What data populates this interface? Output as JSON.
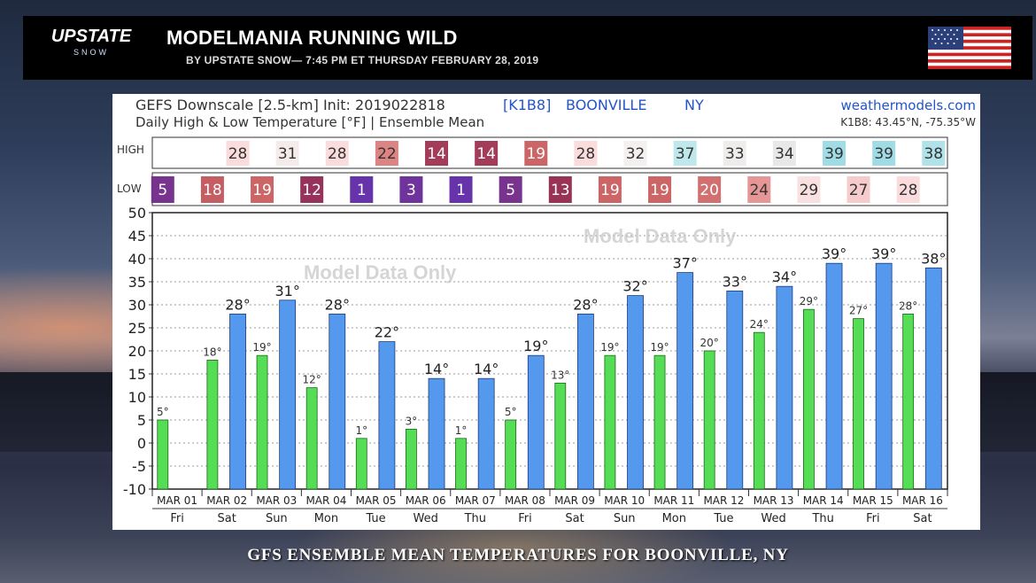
{
  "header": {
    "logo_main": "UPSTATE",
    "logo_sub": "SNOW",
    "title": "MODELMANIA RUNNING WILD",
    "byline": "BY UPSTATE SNOW— 7:45 PM ET THURSDAY FEBRUARY 28, 2019"
  },
  "caption": "GFS ENSEMBLE MEAN TEMPERATURES FOR BOONVILLE, NY",
  "colors": {
    "high_bar": "#5599ee",
    "low_bar": "#55dd55"
  },
  "chart_data": {
    "type": "bar",
    "title_line1": "GEFS Downscale [2.5-km] Init: 2019022818",
    "station_id": "[K1B8]",
    "station_name": "BOONVILLE",
    "station_state": "NY",
    "source": "weathermodels.com",
    "title_line2": "Daily High & Low Temperature [°F] | Ensemble Mean",
    "location": "K1B8: 43.45°N, -75.35°W",
    "watermark": "Model Data Only",
    "high_label": "HIGH",
    "low_label": "LOW",
    "categories": [
      "MAR 01",
      "MAR 02",
      "MAR 03",
      "MAR 04",
      "MAR 05",
      "MAR 06",
      "MAR 07",
      "MAR 08",
      "MAR 09",
      "MAR 10",
      "MAR 11",
      "MAR 12",
      "MAR 13",
      "MAR 14",
      "MAR 15",
      "MAR 16"
    ],
    "weekdays": [
      "Fri",
      "Sat",
      "Sun",
      "Mon",
      "Tue",
      "Wed",
      "Thu",
      "Fri",
      "Sat",
      "Sun",
      "Mon",
      "Tue",
      "Wed",
      "Thu",
      "Fri",
      "Sat"
    ],
    "series": [
      {
        "name": "HIGH",
        "values": [
          null,
          28,
          31,
          28,
          22,
          14,
          14,
          19,
          28,
          32,
          37,
          33,
          34,
          39,
          39,
          38
        ]
      },
      {
        "name": "LOW",
        "values": [
          5,
          18,
          19,
          12,
          1,
          3,
          1,
          5,
          13,
          19,
          19,
          20,
          24,
          29,
          27,
          28
        ]
      }
    ],
    "ylim": [
      -10,
      50
    ],
    "yticks": [
      -10,
      -5,
      0,
      5,
      10,
      15,
      20,
      25,
      30,
      35,
      40,
      45,
      50
    ],
    "grid": true
  }
}
